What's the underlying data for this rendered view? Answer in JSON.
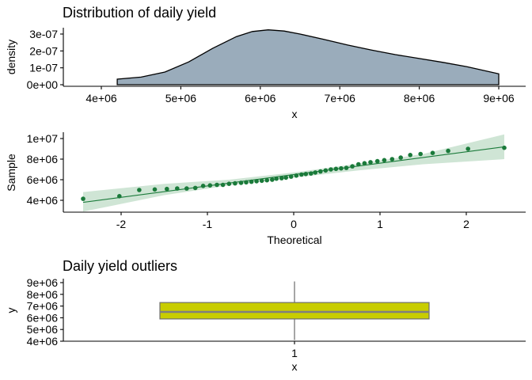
{
  "chart_data": [
    {
      "type": "area",
      "title": "Distribution of daily yield",
      "xlabel": "x",
      "ylabel": "density",
      "xlim": [
        4200000,
        9000000
      ],
      "ylim": [
        0,
        3.3e-07
      ],
      "x_ticks": [
        4000000,
        5000000,
        6000000,
        7000000,
        8000000,
        9000000
      ],
      "x_tick_labels": [
        "4e+06",
        "5e+06",
        "6e+06",
        "7e+06",
        "8e+06",
        "9e+06"
      ],
      "y_ticks": [
        0,
        1e-07,
        2e-07,
        3e-07
      ],
      "y_tick_labels": [
        "0e+00",
        "1e-07",
        "2e-07",
        "3e-07"
      ],
      "fill_color": "#9aacbb",
      "x": [
        4200000,
        4500000,
        4800000,
        5100000,
        5400000,
        5700000,
        5900000,
        6100000,
        6300000,
        6500000,
        6800000,
        7100000,
        7400000,
        7700000,
        8000000,
        8300000,
        8600000,
        9000000
      ],
      "y": [
        3.3e-08,
        4.5e-08,
        7.5e-08,
        1.35e-07,
        2.15e-07,
        2.85e-07,
        3.15e-07,
        3.25e-07,
        3.18e-07,
        3e-07,
        2.68e-07,
        2.35e-07,
        2.05e-07,
        1.78e-07,
        1.55e-07,
        1.32e-07,
        1.07e-07,
        6.4e-08
      ],
      "grid": false
    },
    {
      "type": "scatter",
      "title": "",
      "xlabel": "Theoretical",
      "ylabel": "Sample",
      "xlim": [
        -2.5,
        2.5
      ],
      "ylim": [
        2800000,
        10600000
      ],
      "x_ticks": [
        -2,
        -1,
        0,
        1,
        2
      ],
      "x_tick_labels": [
        "-2",
        "-1",
        "0",
        "1",
        "2"
      ],
      "y_ticks": [
        4000000,
        6000000,
        8000000,
        10000000
      ],
      "y_tick_labels": [
        "4e+06",
        "6e+06",
        "8e+06",
        "1e+07"
      ],
      "point_color": "#1a7a3a",
      "band_color": "#cfe5d5",
      "reference_line": {
        "x": [
          -2.44,
          2.44
        ],
        "y": [
          3800000,
          9200000
        ]
      },
      "confidence_band": {
        "x": [
          -2.44,
          -1.5,
          -0.75,
          0,
          0.75,
          1.5,
          2.44
        ],
        "lower": [
          2900000,
          4500000,
          5450000,
          6200000,
          6900000,
          7500000,
          8000000
        ],
        "upper": [
          4800000,
          5600000,
          6000000,
          6700000,
          7550000,
          8500000,
          10400000
        ]
      },
      "points": {
        "x": [
          -2.44,
          -2.02,
          -1.79,
          -1.61,
          -1.47,
          -1.35,
          -1.24,
          -1.14,
          -1.05,
          -0.97,
          -0.89,
          -0.82,
          -0.75,
          -0.68,
          -0.61,
          -0.55,
          -0.49,
          -0.43,
          -0.37,
          -0.31,
          -0.25,
          -0.2,
          -0.14,
          -0.09,
          -0.03,
          0.03,
          0.09,
          0.14,
          0.2,
          0.25,
          0.31,
          0.37,
          0.43,
          0.49,
          0.55,
          0.61,
          0.68,
          0.75,
          0.82,
          0.89,
          0.97,
          1.05,
          1.14,
          1.24,
          1.35,
          1.47,
          1.61,
          1.79,
          2.02,
          2.44
        ],
        "y": [
          4150000,
          4400000,
          5000000,
          5050000,
          5100000,
          5150000,
          5150000,
          5200000,
          5400000,
          5450000,
          5500000,
          5500000,
          5600000,
          5650000,
          5700000,
          5750000,
          5800000,
          5850000,
          5900000,
          5950000,
          6000000,
          6100000,
          6150000,
          6200000,
          6300000,
          6400000,
          6500000,
          6550000,
          6600000,
          6700000,
          6800000,
          6900000,
          7000000,
          7050000,
          7100000,
          7150000,
          7300000,
          7500000,
          7600000,
          7700000,
          7800000,
          7900000,
          8000000,
          8150000,
          8400000,
          8500000,
          8600000,
          8800000,
          9000000,
          9100000
        ]
      },
      "grid": false
    },
    {
      "type": "box",
      "title": "Daily yield outliers",
      "xlabel": "x",
      "ylabel": "y",
      "categories": [
        "1"
      ],
      "ylim": [
        4000000,
        9000000
      ],
      "y_ticks": [
        4000000,
        5000000,
        6000000,
        7000000,
        8000000,
        9000000
      ],
      "y_tick_labels": [
        "4e+06",
        "5e+06",
        "6e+06",
        "7e+06",
        "8e+06",
        "9e+06"
      ],
      "box_color": "#c8cd00",
      "min": 4100000,
      "q1": 5900000,
      "median": 6500000,
      "q3": 7300000,
      "max": 9100000,
      "grid": false
    }
  ]
}
